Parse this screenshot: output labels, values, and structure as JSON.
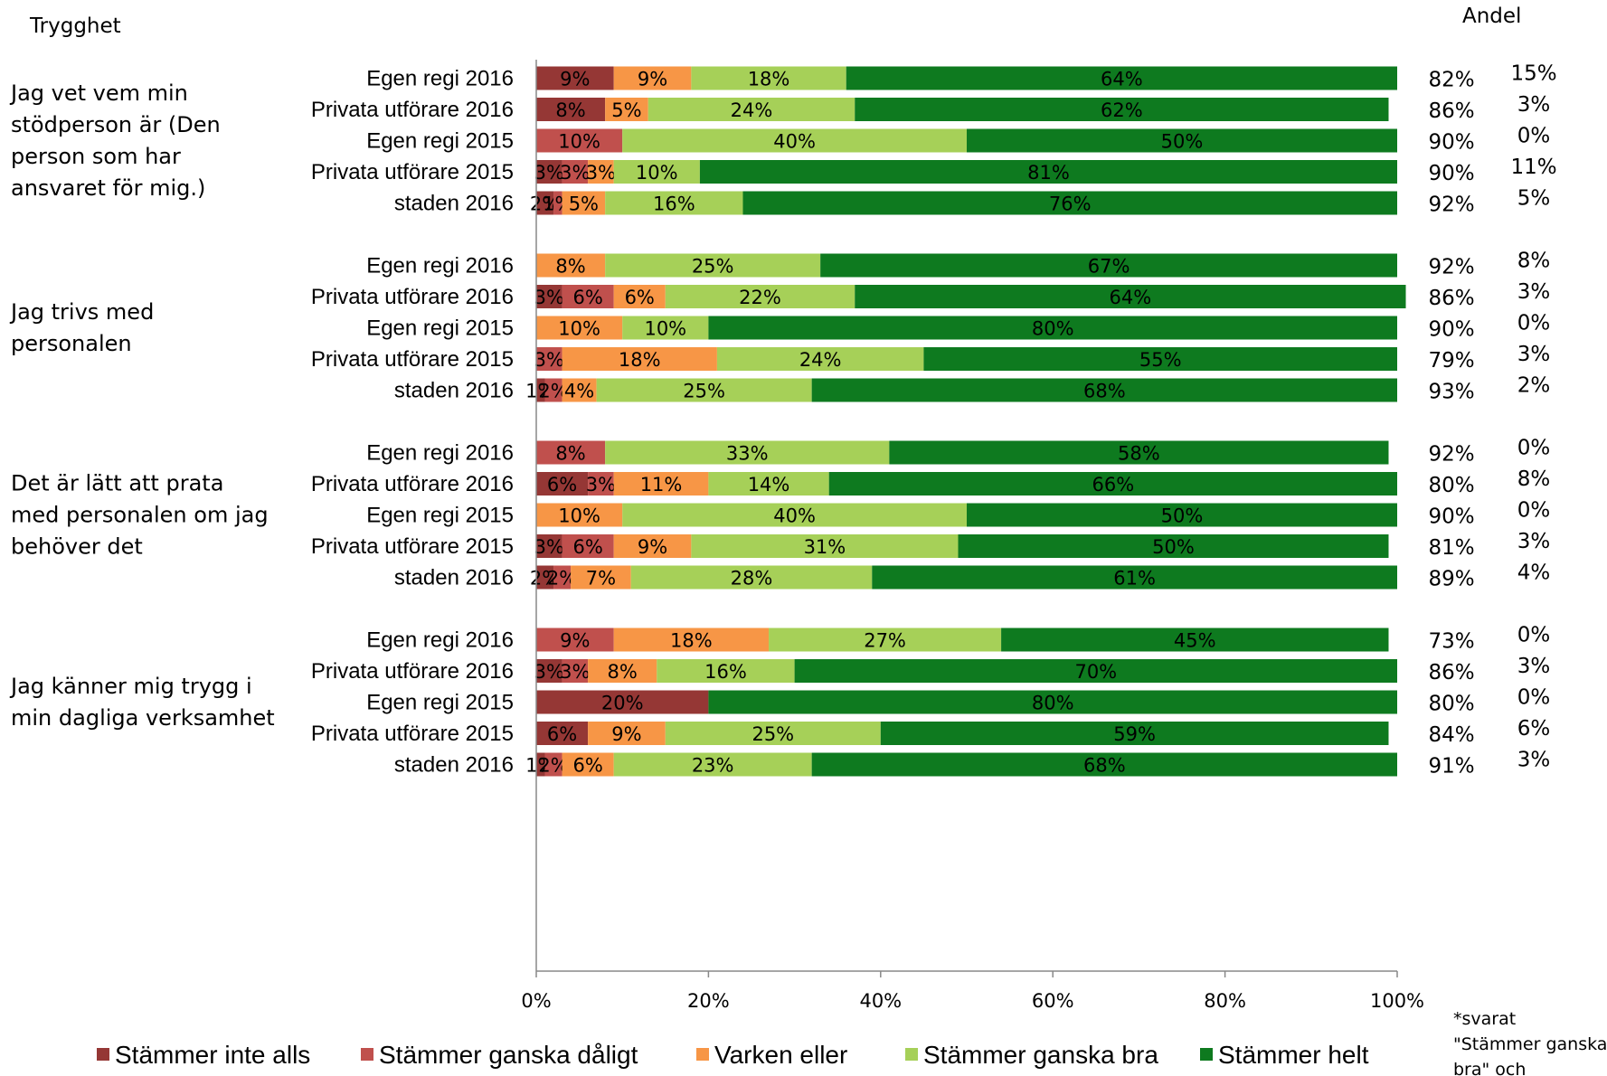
{
  "chart_data": {
    "type": "bar",
    "orientation": "horizontal",
    "stacked": true,
    "normalized": true,
    "title": "",
    "section_label": "Trygghet",
    "extra_header": "Andel",
    "footnote_lines": [
      "*svarat",
      "\"Stämmer ganska",
      "bra\" och"
    ],
    "xlim": [
      0,
      100
    ],
    "x_ticks": [
      "0%",
      "20%",
      "40%",
      "60%",
      "80%",
      "100%"
    ],
    "series": [
      {
        "name": "Stämmer inte alls",
        "color": "#953735"
      },
      {
        "name": "Stämmer ganska dåligt",
        "color": "#C0504D"
      },
      {
        "name": "Varken eller",
        "color": "#F79646"
      },
      {
        "name": "Stämmer ganska bra",
        "color": "#A6D058"
      },
      {
        "name": "Stämmer helt",
        "color": "#0E7A1F"
      }
    ],
    "groups": [
      {
        "question_lines": [
          "Jag vet vem min",
          "stödperson är (Den",
          "person som har",
          "ansvaret för mig.)"
        ],
        "rows": [
          {
            "category": "Egen regi 2016",
            "values": [
              9,
              0,
              9,
              18,
              64
            ],
            "labels": [
              "9%",
              "",
              "9%",
              "18%",
              "64%"
            ],
            "andel": "82%",
            "extra": "15%"
          },
          {
            "category": "Privata utförare 2016",
            "values": [
              8,
              0,
              5,
              24,
              62
            ],
            "labels": [
              "8%",
              "",
              "5%",
              "24%",
              "62%"
            ],
            "andel": "86%",
            "extra": "3%"
          },
          {
            "category": "Egen regi 2015",
            "values": [
              0,
              10,
              0,
              40,
              50
            ],
            "labels": [
              "",
              "10%",
              "",
              "40%",
              "50%"
            ],
            "andel": "90%",
            "extra": "0%"
          },
          {
            "category": "Privata utförare 2015",
            "values": [
              3,
              3,
              3,
              10,
              81
            ],
            "labels": [
              "3%",
              "3%",
              "3%",
              "10%",
              "81%"
            ],
            "andel": "90%",
            "extra": "11%"
          },
          {
            "category": "staden 2016",
            "values": [
              2,
              1,
              5,
              16,
              76
            ],
            "labels": [
              "2%",
              "1%",
              "5%",
              "16%",
              "76%"
            ],
            "andel": "92%",
            "extra": "5%"
          }
        ]
      },
      {
        "question_lines": [
          "Jag trivs med",
          "personalen"
        ],
        "rows": [
          {
            "category": "Egen regi 2016",
            "values": [
              0,
              0,
              8,
              25,
              67
            ],
            "labels": [
              "",
              "",
              "8%",
              "25%",
              "67%"
            ],
            "andel": "92%",
            "extra": "8%"
          },
          {
            "category": "Privata utförare 2016",
            "values": [
              3,
              6,
              6,
              22,
              64
            ],
            "labels": [
              "3%",
              "6%",
              "6%",
              "22%",
              "64%"
            ],
            "andel": "86%",
            "extra": "3%"
          },
          {
            "category": "Egen regi 2015",
            "values": [
              0,
              0,
              10,
              10,
              80
            ],
            "labels": [
              "",
              "",
              "10%",
              "10%",
              "80%"
            ],
            "andel": "90%",
            "extra": "0%"
          },
          {
            "category": "Privata utförare 2015",
            "values": [
              0,
              3,
              18,
              24,
              55
            ],
            "labels": [
              "",
              "3%",
              "18%",
              "24%",
              "55%"
            ],
            "andel": "79%",
            "extra": "3%"
          },
          {
            "category": "staden 2016",
            "values": [
              1,
              2,
              4,
              25,
              68
            ],
            "labels": [
              "1%",
              "2%",
              "4%",
              "25%",
              "68%"
            ],
            "andel": "93%",
            "extra": "2%"
          }
        ]
      },
      {
        "question_lines": [
          "Det är lätt att prata",
          "med personalen om jag",
          "behöver det"
        ],
        "rows": [
          {
            "category": "Egen regi 2016",
            "values": [
              0,
              8,
              0,
              33,
              58
            ],
            "labels": [
              "",
              "8%",
              "",
              "33%",
              "58%"
            ],
            "andel": "92%",
            "extra": "0%"
          },
          {
            "category": "Privata utförare 2016",
            "values": [
              6,
              3,
              11,
              14,
              66
            ],
            "labels": [
              "6%",
              "3%",
              "11%",
              "14%",
              "66%"
            ],
            "andel": "80%",
            "extra": "8%"
          },
          {
            "category": "Egen regi 2015",
            "values": [
              0,
              0,
              10,
              40,
              50
            ],
            "labels": [
              "",
              "",
              "10%",
              "40%",
              "50%"
            ],
            "andel": "90%",
            "extra": "0%"
          },
          {
            "category": "Privata utförare 2015",
            "values": [
              3,
              6,
              9,
              31,
              50
            ],
            "labels": [
              "3%",
              "6%",
              "9%",
              "31%",
              "50%"
            ],
            "andel": "81%",
            "extra": "3%"
          },
          {
            "category": "staden 2016",
            "values": [
              2,
              2,
              7,
              28,
              61
            ],
            "labels": [
              "2%",
              "2%",
              "7%",
              "28%",
              "61%"
            ],
            "andel": "89%",
            "extra": "4%"
          }
        ]
      },
      {
        "question_lines": [
          "Jag känner mig trygg i",
          "min dagliga verksamhet"
        ],
        "rows": [
          {
            "category": "Egen regi 2016",
            "values": [
              0,
              9,
              18,
              27,
              45
            ],
            "labels": [
              "",
              "9%",
              "18%",
              "27%",
              "45%"
            ],
            "andel": "73%",
            "extra": "0%"
          },
          {
            "category": "Privata utförare 2016",
            "values": [
              3,
              3,
              8,
              16,
              70
            ],
            "labels": [
              "3%",
              "3%",
              "8%",
              "16%",
              "70%"
            ],
            "andel": "86%",
            "extra": "3%"
          },
          {
            "category": "Egen regi 2015",
            "values": [
              20,
              0,
              0,
              0,
              80
            ],
            "labels": [
              "20%",
              "",
              "",
              "",
              "80%"
            ],
            "andel": "80%",
            "extra": "0%"
          },
          {
            "category": "Privata utförare 2015",
            "values": [
              6,
              0,
              9,
              25,
              59
            ],
            "labels": [
              "6%",
              "",
              "9%",
              "25%",
              "59%"
            ],
            "andel": "84%",
            "extra": "6%"
          },
          {
            "category": "staden 2016",
            "values": [
              1,
              2,
              6,
              23,
              68
            ],
            "labels": [
              "1%",
              "2%",
              "6%",
              "23%",
              "68%"
            ],
            "andel": "91%",
            "extra": "3%"
          }
        ]
      }
    ],
    "legend_position": "bottom"
  }
}
